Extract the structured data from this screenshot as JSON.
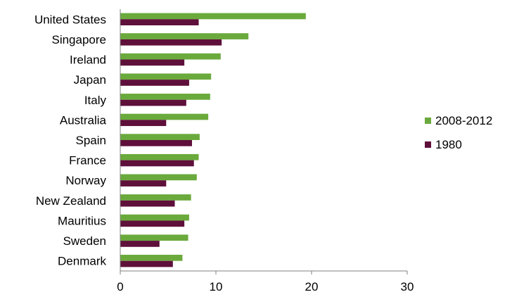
{
  "chart_data": {
    "type": "bar",
    "orientation": "horizontal",
    "categories": [
      "United States",
      "Singapore",
      "Ireland",
      "Japan",
      "Italy",
      "Australia",
      "Spain",
      "France",
      "Norway",
      "New Zealand",
      "Mauritius",
      "Sweden",
      "Denmark"
    ],
    "series": [
      {
        "name": "2008-2012",
        "color": "#6aaa3c",
        "values": [
          19.4,
          13.4,
          10.5,
          9.5,
          9.4,
          9.2,
          8.3,
          8.2,
          8.0,
          7.4,
          7.2,
          7.1,
          6.5
        ]
      },
      {
        "name": "1980",
        "color": "#5e0f3a",
        "values": [
          8.2,
          10.6,
          6.7,
          7.2,
          6.9,
          4.8,
          7.5,
          7.7,
          4.8,
          5.7,
          6.7,
          4.1,
          5.5
        ]
      }
    ],
    "xlim": [
      0,
      30
    ],
    "xticks": [
      0,
      10,
      20,
      30
    ],
    "grid": false,
    "legend_position": "right"
  }
}
